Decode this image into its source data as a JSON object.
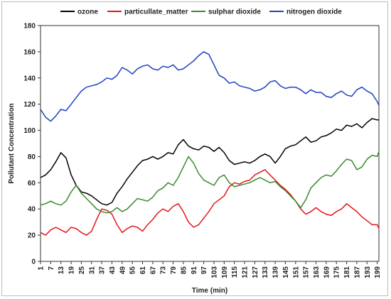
{
  "chart_data": {
    "type": "line",
    "xlabel": "Time (min)",
    "ylabel": "Pollutant Concentration",
    "ylim": [
      0,
      180
    ],
    "yticks": [
      0,
      20,
      40,
      60,
      80,
      100,
      120,
      140,
      160,
      180
    ],
    "xlim": [
      1,
      200
    ],
    "xticks": [
      1,
      7,
      13,
      19,
      25,
      31,
      37,
      43,
      49,
      55,
      61,
      67,
      73,
      79,
      85,
      91,
      97,
      103,
      109,
      115,
      121,
      127,
      133,
      139,
      145,
      151,
      157,
      163,
      169,
      175,
      181,
      187,
      193,
      199
    ],
    "grid": false,
    "legend": "top",
    "series": [
      {
        "name": "ozone",
        "color": "#000000",
        "x": [
          1,
          4,
          7,
          10,
          13,
          16,
          19,
          22,
          25,
          28,
          31,
          34,
          37,
          40,
          43,
          46,
          49,
          52,
          55,
          58,
          61,
          64,
          67,
          70,
          73,
          76,
          79,
          82,
          85,
          88,
          91,
          94,
          97,
          100,
          103,
          106,
          109,
          112,
          115,
          118,
          121,
          124,
          127,
          130,
          133,
          136,
          139,
          142,
          145,
          148,
          151,
          154,
          157,
          160,
          163,
          166,
          169,
          172,
          175,
          178,
          181,
          184,
          187,
          190,
          193,
          196,
          199,
          200
        ],
        "values": [
          64,
          66,
          70,
          76,
          83,
          79,
          66,
          58,
          53,
          52,
          50,
          47,
          44,
          43,
          45,
          52,
          57,
          63,
          68,
          73,
          77,
          78,
          80,
          78,
          80,
          83,
          82,
          89,
          93,
          88,
          86,
          85,
          88,
          87,
          84,
          87,
          83,
          77,
          74,
          75,
          76,
          75,
          77,
          80,
          82,
          80,
          75,
          80,
          86,
          88,
          89,
          92,
          95,
          91,
          92,
          95,
          96,
          98,
          101,
          100,
          104,
          103,
          105,
          102,
          106,
          109,
          108,
          108
        ]
      },
      {
        "name": "particullate_matter",
        "color": "#e4161b",
        "x": [
          1,
          4,
          7,
          10,
          13,
          16,
          19,
          22,
          25,
          28,
          31,
          34,
          37,
          40,
          43,
          46,
          49,
          52,
          55,
          58,
          61,
          64,
          67,
          70,
          73,
          76,
          79,
          82,
          85,
          88,
          91,
          94,
          97,
          100,
          103,
          106,
          109,
          112,
          115,
          118,
          121,
          124,
          127,
          130,
          133,
          136,
          139,
          142,
          145,
          148,
          151,
          154,
          157,
          160,
          163,
          166,
          169,
          172,
          175,
          178,
          181,
          184,
          187,
          190,
          193,
          196,
          199,
          200
        ],
        "values": [
          22,
          20,
          24,
          26,
          24,
          22,
          26,
          25,
          22,
          20,
          23,
          32,
          40,
          39,
          36,
          28,
          22,
          25,
          27,
          26,
          23,
          28,
          32,
          37,
          40,
          38,
          42,
          44,
          38,
          30,
          26,
          28,
          33,
          38,
          44,
          47,
          50,
          57,
          60,
          59,
          61,
          62,
          66,
          68,
          70,
          66,
          62,
          58,
          55,
          51,
          46,
          40,
          36,
          38,
          41,
          38,
          36,
          35,
          38,
          40,
          44,
          41,
          38,
          34,
          31,
          28,
          28,
          25
        ]
      },
      {
        "name": "sulphar dioxide",
        "color": "#3a8a2e",
        "x": [
          1,
          4,
          7,
          10,
          13,
          16,
          19,
          22,
          25,
          28,
          31,
          34,
          37,
          40,
          43,
          46,
          49,
          52,
          55,
          58,
          61,
          64,
          67,
          70,
          73,
          76,
          79,
          82,
          85,
          88,
          91,
          94,
          97,
          100,
          103,
          106,
          109,
          112,
          115,
          118,
          121,
          124,
          127,
          130,
          133,
          136,
          139,
          142,
          145,
          148,
          151,
          154,
          157,
          160,
          163,
          166,
          169,
          172,
          175,
          178,
          181,
          184,
          187,
          190,
          193,
          196,
          199,
          200
        ],
        "values": [
          43,
          44,
          46,
          44,
          43,
          46,
          53,
          58,
          52,
          48,
          44,
          40,
          38,
          37,
          38,
          41,
          38,
          40,
          44,
          48,
          47,
          46,
          49,
          54,
          56,
          60,
          58,
          64,
          72,
          80,
          75,
          67,
          62,
          60,
          58,
          64,
          66,
          60,
          57,
          58,
          59,
          60,
          62,
          64,
          62,
          60,
          61,
          57,
          54,
          50,
          46,
          41,
          47,
          56,
          60,
          64,
          66,
          65,
          69,
          74,
          78,
          77,
          70,
          72,
          78,
          81,
          80,
          84
        ]
      },
      {
        "name": "nitrogen dioxide",
        "color": "#1f3fbf",
        "x": [
          1,
          4,
          7,
          10,
          13,
          16,
          19,
          22,
          25,
          28,
          31,
          34,
          37,
          40,
          43,
          46,
          49,
          52,
          55,
          58,
          61,
          64,
          67,
          70,
          73,
          76,
          79,
          82,
          85,
          88,
          91,
          94,
          97,
          100,
          103,
          106,
          109,
          112,
          115,
          118,
          121,
          124,
          127,
          130,
          133,
          136,
          139,
          142,
          145,
          148,
          151,
          154,
          157,
          160,
          163,
          166,
          169,
          172,
          175,
          178,
          181,
          184,
          187,
          190,
          193,
          196,
          199,
          200
        ],
        "values": [
          116,
          110,
          107,
          111,
          116,
          115,
          120,
          125,
          130,
          133,
          134,
          135,
          137,
          140,
          139,
          142,
          148,
          146,
          143,
          147,
          149,
          150,
          147,
          146,
          149,
          148,
          150,
          146,
          147,
          150,
          153,
          157,
          160,
          158,
          150,
          142,
          140,
          136,
          137,
          134,
          133,
          132,
          130,
          131,
          133,
          137,
          138,
          134,
          132,
          133,
          133,
          131,
          128,
          131,
          129,
          129,
          126,
          125,
          128,
          130,
          127,
          126,
          131,
          133,
          130,
          128,
          122,
          119
        ]
      }
    ]
  }
}
